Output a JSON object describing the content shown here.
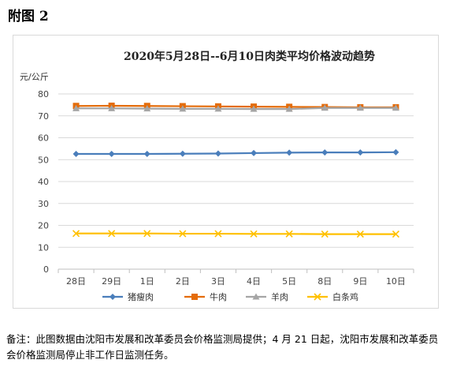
{
  "heading": "附图 2",
  "footnote": "备注：此图数据由沈阳市发展和改革委员会价格监测局提供；4 月 21 日起，沈阳市发展和改革委员会价格监测局停止非工作日监测任务。",
  "chart_data": {
    "type": "line",
    "title": "2020年5月28日--6月10日肉类平均价格波动趋势",
    "ylabel": "元/公斤",
    "xlabel": "",
    "ylim": [
      0,
      80
    ],
    "yticks": [
      0,
      10,
      20,
      30,
      40,
      50,
      60,
      70,
      80
    ],
    "grid": true,
    "legend_position": "bottom",
    "categories": [
      "28日",
      "29日",
      "1日",
      "2日",
      "3日",
      "4日",
      "5日",
      "8日",
      "9日",
      "10日"
    ],
    "series": [
      {
        "name": "猪瘦肉",
        "color": "#4a7ebb",
        "marker": "diamond",
        "values": [
          52.6,
          52.6,
          52.6,
          52.7,
          52.8,
          53.0,
          53.2,
          53.3,
          53.3,
          53.4
        ]
      },
      {
        "name": "牛肉",
        "color": "#e46c0a",
        "marker": "square",
        "values": [
          74.5,
          74.6,
          74.5,
          74.4,
          74.3,
          74.2,
          74.1,
          74.0,
          73.9,
          73.9
        ]
      },
      {
        "name": "羊肉",
        "color": "#a5a5a5",
        "marker": "triangle",
        "values": [
          73.4,
          73.4,
          73.3,
          73.2,
          73.2,
          73.1,
          73.1,
          73.6,
          73.6,
          73.6
        ]
      },
      {
        "name": "白条鸡",
        "color": "#ffc000",
        "marker": "x",
        "values": [
          16.3,
          16.3,
          16.3,
          16.2,
          16.2,
          16.1,
          16.1,
          16.0,
          16.0,
          16.0
        ]
      }
    ]
  }
}
